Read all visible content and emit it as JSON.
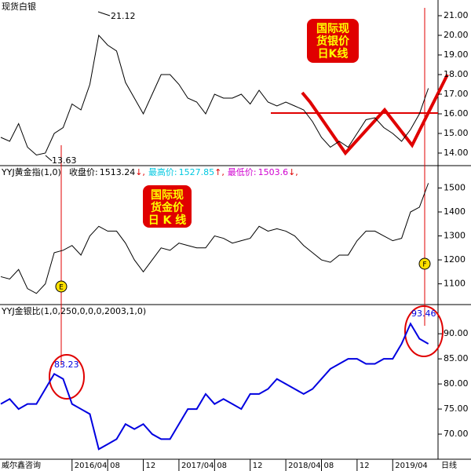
{
  "chart_data": [
    {
      "type": "line",
      "title": "现货白银",
      "color": "#000000",
      "values": [
        14.8,
        14.6,
        15.5,
        14.3,
        13.9,
        14.0,
        15.0,
        15.3,
        16.5,
        16.2,
        17.5,
        20.0,
        19.5,
        19.2,
        17.6,
        16.8,
        16.0,
        17.0,
        18.0,
        18.0,
        17.5,
        16.8,
        16.6,
        16.0,
        17.0,
        16.8,
        16.8,
        17.0,
        16.5,
        17.2,
        16.6,
        16.4,
        16.6,
        16.4,
        16.2,
        15.6,
        14.8,
        14.3,
        14.6,
        14.3,
        15.0,
        15.7,
        15.8,
        15.3,
        15.0,
        14.6,
        15.2,
        16.0,
        17.3
      ],
      "ylim": [
        13.4,
        21.6
      ],
      "yticks": [
        {
          "value": 14,
          "label": "14.00"
        },
        {
          "value": 15,
          "label": "15.00"
        },
        {
          "value": 16,
          "label": "16.00"
        },
        {
          "value": 17,
          "label": "17.00"
        },
        {
          "value": 18,
          "label": "18.00"
        },
        {
          "value": 19,
          "label": "19.00"
        },
        {
          "value": 20,
          "label": "20.00"
        },
        {
          "value": 21,
          "label": "21.00"
        }
      ],
      "annotations": [
        "21.12",
        "13.63"
      ],
      "note_box": [
        "国际现",
        "货银价",
        "日K线"
      ]
    },
    {
      "type": "line",
      "title": "YYJ黄金指(1,0)",
      "color": "#000000",
      "stats": [
        {
          "label": "收盘价:",
          "value": 1513.24,
          "suffix": "↓,",
          "color": "#000000"
        },
        {
          "label": "最高价:",
          "value": 1527.85,
          "suffix": "↑,",
          "color": "#00c8e0"
        },
        {
          "label": "最低价:",
          "value": 1503.6,
          "suffix": "↓,",
          "color": "#d000d0"
        }
      ],
      "values": [
        1130,
        1120,
        1160,
        1080,
        1060,
        1100,
        1230,
        1240,
        1260,
        1220,
        1300,
        1340,
        1320,
        1320,
        1270,
        1200,
        1150,
        1200,
        1250,
        1240,
        1270,
        1260,
        1250,
        1250,
        1300,
        1290,
        1270,
        1280,
        1290,
        1340,
        1320,
        1330,
        1320,
        1300,
        1260,
        1230,
        1200,
        1190,
        1220,
        1220,
        1280,
        1320,
        1320,
        1300,
        1280,
        1290,
        1400,
        1420,
        1520
      ],
      "ylim": [
        1020,
        1590
      ],
      "yticks": [
        1100,
        1200,
        1300,
        1400,
        1500
      ],
      "markers": [
        "E",
        "F"
      ],
      "note_box": [
        "国际现",
        "货金价",
        "日 K 线"
      ]
    },
    {
      "type": "line",
      "title": "YYJ金银比(1,0,250,0,0,0,2003,1,0)",
      "color": "#0000e0",
      "values": [
        76,
        77,
        75,
        76,
        76,
        79,
        82,
        81,
        76,
        75,
        74,
        67,
        68,
        69,
        72,
        71,
        72,
        70,
        69,
        69,
        72,
        75,
        75,
        78,
        76,
        77,
        76,
        75,
        78,
        78,
        79,
        81,
        80,
        79,
        78,
        79,
        81,
        83,
        84,
        85,
        85,
        84,
        84,
        85,
        85,
        88,
        92,
        89,
        88
      ],
      "ylim": [
        65,
        95.5
      ],
      "yticks": [
        {
          "value": 70,
          "label": "70.00"
        },
        {
          "value": 75,
          "label": "75.00"
        },
        {
          "value": 80,
          "label": "80.00"
        },
        {
          "value": 85,
          "label": "85.00"
        },
        {
          "value": 90,
          "label": "90.00"
        }
      ],
      "annotations": [
        "83.23",
        "93.46"
      ],
      "xlim": [
        0,
        49
      ],
      "xticks": [
        {
          "value": 8,
          "label": "2016/04"
        },
        {
          "value": 12,
          "label": "08"
        },
        {
          "value": 16,
          "label": "12"
        },
        {
          "value": 20,
          "label": "2017/04"
        },
        {
          "value": 24,
          "label": "08"
        },
        {
          "value": 28,
          "label": "12"
        },
        {
          "value": 32,
          "label": "2018/04"
        },
        {
          "value": 36,
          "label": "08"
        },
        {
          "value": 40,
          "label": "12"
        },
        {
          "value": 44,
          "label": "2019/04"
        }
      ],
      "source": "威尔鑫咨询",
      "period": "日线"
    }
  ]
}
